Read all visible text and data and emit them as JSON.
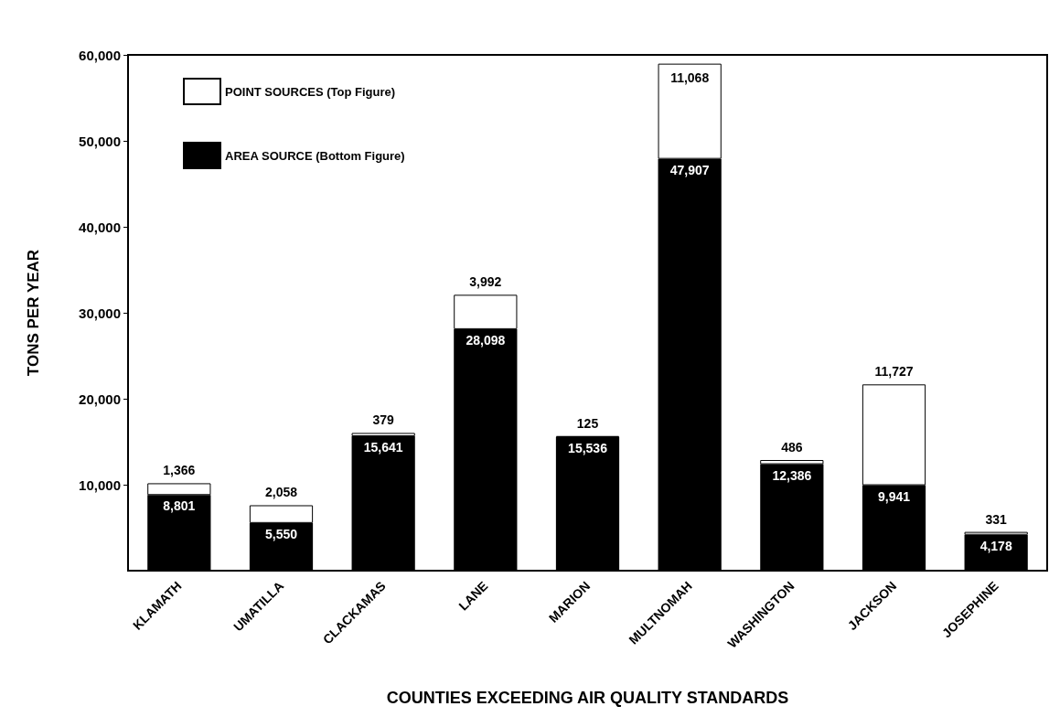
{
  "chart_data": {
    "type": "bar",
    "stacked": true,
    "xlabel": "COUNTIES EXCEEDING AIR QUALITY STANDARDS",
    "ylabel": "TONS PER YEAR",
    "categories": [
      "KLAMATH",
      "UMATILLA",
      "CLACKAMAS",
      "LANE",
      "MARION",
      "MULTNOMAH",
      "WASHINGTON",
      "JACKSON",
      "JOSEPHINE"
    ],
    "series": [
      {
        "name": "AREA SOURCE (Bottom Figure)",
        "color": "#000000",
        "values": [
          8801,
          5550,
          15641,
          28098,
          15536,
          47907,
          12386,
          9941,
          4178
        ],
        "value_labels": [
          "8,801",
          "5,550",
          "15,641",
          "28,098",
          "15,536",
          "47,907",
          "12,386",
          "9,941",
          "4,178"
        ]
      },
      {
        "name": "POINT SOURCES (Top Figure)",
        "color": "#ffffff",
        "values": [
          1366,
          2058,
          379,
          3992,
          125,
          11068,
          486,
          11727,
          331
        ],
        "value_labels": [
          "1,366",
          "2,058",
          "379",
          "3,992",
          "125",
          "11,068",
          "486",
          "11,727",
          "331"
        ]
      }
    ],
    "ylim": [
      0,
      60000
    ],
    "yticks": [
      {
        "value": 10000,
        "label": "10,000"
      },
      {
        "value": 20000,
        "label": "20,000"
      },
      {
        "value": 30000,
        "label": "30,000"
      },
      {
        "value": 40000,
        "label": "40,000"
      },
      {
        "value": 50000,
        "label": "50,000"
      },
      {
        "value": 60000,
        "label": "60,000"
      }
    ],
    "grid": false,
    "legend": "top left"
  }
}
